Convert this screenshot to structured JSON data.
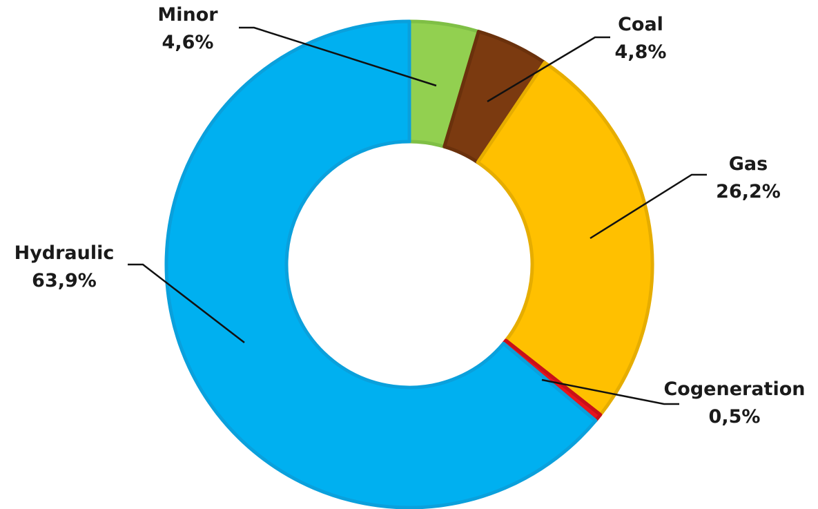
{
  "chart_data": {
    "type": "pie",
    "variant": "donut",
    "title": "",
    "slices": [
      {
        "name": "Minor",
        "value": 4.6,
        "label": "4,6%",
        "color": "#92d050",
        "border": "#7fbf45"
      },
      {
        "name": "Coal",
        "value": 4.8,
        "label": "4,8%",
        "color": "#7b3a10",
        "border": "#6a310c"
      },
      {
        "name": "Gas",
        "value": 26.2,
        "label": "26,2%",
        "color": "#ffc000",
        "border": "#e6ad00"
      },
      {
        "name": "Cogeneration",
        "value": 0.5,
        "label": "0,5%",
        "color": "#e8141c",
        "border": "#c81018"
      },
      {
        "name": "Hydraulic",
        "value": 63.9,
        "label": "63,9%",
        "color": "#00b0f0",
        "border": "#0aa0dc"
      }
    ],
    "legend": "none",
    "data_labels": "outside with leader lines"
  }
}
